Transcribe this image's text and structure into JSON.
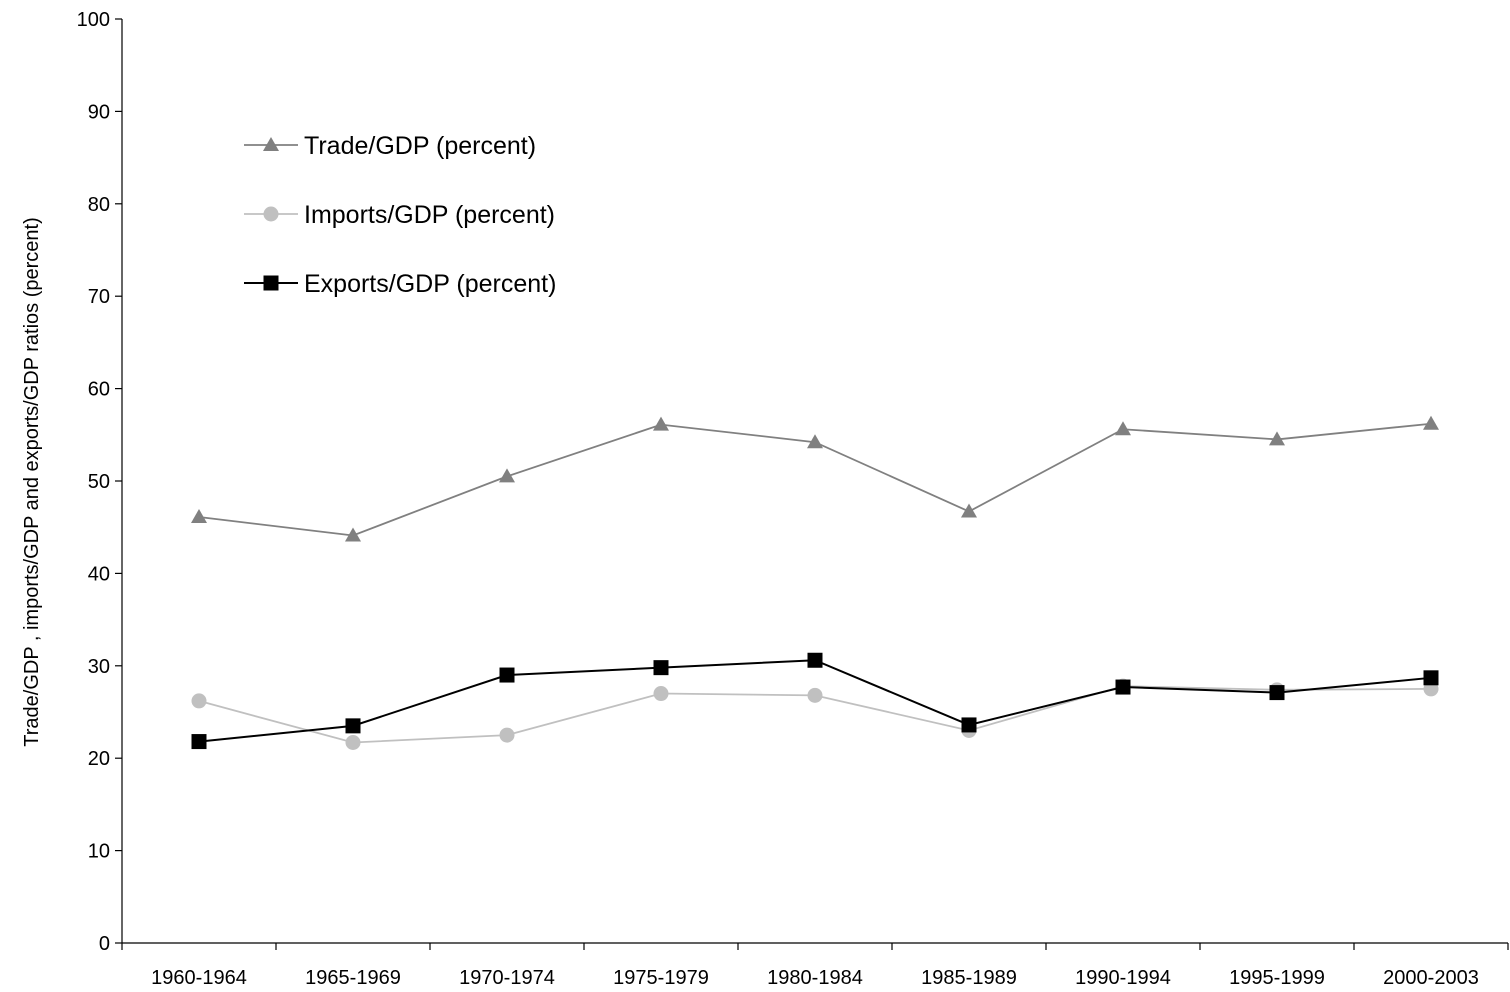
{
  "chart_data": {
    "type": "line",
    "title": "",
    "xlabel": "",
    "ylabel": "Trade/GDP , imports/GDP and exports/GDP ratios (percent)",
    "ylim": [
      0,
      100
    ],
    "yticks": [
      0,
      10,
      20,
      30,
      40,
      50,
      60,
      70,
      80,
      90,
      100
    ],
    "grid": false,
    "legend_position": "top-left",
    "categories": [
      "1960-1964",
      "1965-1969",
      "1970-1974",
      "1975-1979",
      "1980-1984",
      "1985-1989",
      "1990-1994",
      "1995-1999",
      "2000-2003"
    ],
    "series": [
      {
        "name": "Trade/GDP (percent)",
        "marker": "triangle",
        "color": "#808080",
        "values": [
          46.1,
          44.1,
          50.5,
          56.1,
          54.2,
          46.7,
          55.6,
          54.5,
          56.2
        ]
      },
      {
        "name": "Imports/GDP (percent)",
        "marker": "circle",
        "color": "#c0c0c0",
        "values": [
          26.2,
          21.7,
          22.5,
          27.0,
          26.8,
          23.0,
          27.8,
          27.4,
          27.5
        ]
      },
      {
        "name": "Exports/GDP (percent)",
        "marker": "square",
        "color": "#000000",
        "values": [
          21.8,
          23.5,
          29.0,
          29.8,
          30.6,
          23.6,
          27.7,
          27.1,
          28.7
        ]
      }
    ]
  }
}
